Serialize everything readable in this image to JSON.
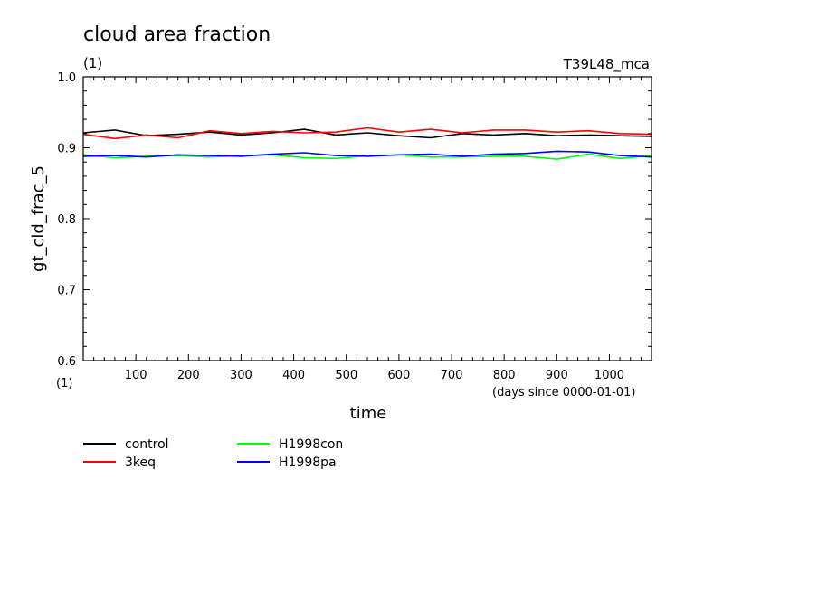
{
  "chart_data": {
    "type": "line",
    "title": "cloud area fraction",
    "units": "(1)",
    "run_label": "T39L48_mca",
    "xlabel": "time",
    "x_units": "(days since 0000-01-01)",
    "ylabel": "gt_cld_frac_5",
    "y_units": "(1)",
    "xlim": [
      0,
      1080
    ],
    "ylim": [
      0.6,
      1.0
    ],
    "x_ticks": [
      "100",
      "200",
      "300",
      "400",
      "500",
      "600",
      "700",
      "800",
      "900",
      "1000"
    ],
    "x_tick_values": [
      100,
      200,
      300,
      400,
      500,
      600,
      700,
      800,
      900,
      1000
    ],
    "y_ticks": [
      "0.6",
      "0.7",
      "0.8",
      "0.9",
      "1.0"
    ],
    "y_tick_values": [
      0.6,
      0.7,
      0.8,
      0.9,
      1.0
    ],
    "grid": false,
    "legend_position": "bottom-left",
    "series": [
      {
        "name": "control",
        "color": "#000000",
        "x": [
          0,
          60,
          120,
          180,
          240,
          300,
          360,
          420,
          480,
          540,
          600,
          660,
          720,
          780,
          840,
          900,
          960,
          1020,
          1080
        ],
        "values": [
          0.921,
          0.925,
          0.917,
          0.919,
          0.922,
          0.918,
          0.921,
          0.926,
          0.918,
          0.921,
          0.917,
          0.914,
          0.92,
          0.918,
          0.92,
          0.917,
          0.918,
          0.917,
          0.916
        ]
      },
      {
        "name": "3keq",
        "color": "#ff0000",
        "x": [
          0,
          60,
          120,
          180,
          240,
          300,
          360,
          420,
          480,
          540,
          600,
          660,
          720,
          780,
          840,
          900,
          960,
          1020,
          1080
        ],
        "values": [
          0.919,
          0.913,
          0.918,
          0.914,
          0.924,
          0.92,
          0.923,
          0.921,
          0.922,
          0.928,
          0.922,
          0.926,
          0.921,
          0.925,
          0.925,
          0.922,
          0.924,
          0.92,
          0.919
        ]
      },
      {
        "name": "H1998con",
        "color": "#00ff00",
        "x": [
          0,
          60,
          120,
          180,
          240,
          300,
          360,
          420,
          480,
          540,
          600,
          660,
          720,
          780,
          840,
          900,
          960,
          1020,
          1080
        ],
        "values": [
          0.89,
          0.886,
          0.888,
          0.889,
          0.887,
          0.889,
          0.89,
          0.886,
          0.885,
          0.889,
          0.89,
          0.887,
          0.887,
          0.888,
          0.888,
          0.884,
          0.891,
          0.885,
          0.889
        ]
      },
      {
        "name": "H1998pa",
        "color": "#0000ff",
        "x": [
          0,
          60,
          120,
          180,
          240,
          300,
          360,
          420,
          480,
          540,
          600,
          660,
          720,
          780,
          840,
          900,
          960,
          1020,
          1080
        ],
        "values": [
          0.888,
          0.889,
          0.887,
          0.89,
          0.889,
          0.888,
          0.891,
          0.893,
          0.889,
          0.888,
          0.89,
          0.891,
          0.888,
          0.891,
          0.892,
          0.895,
          0.894,
          0.889,
          0.887
        ]
      }
    ]
  }
}
